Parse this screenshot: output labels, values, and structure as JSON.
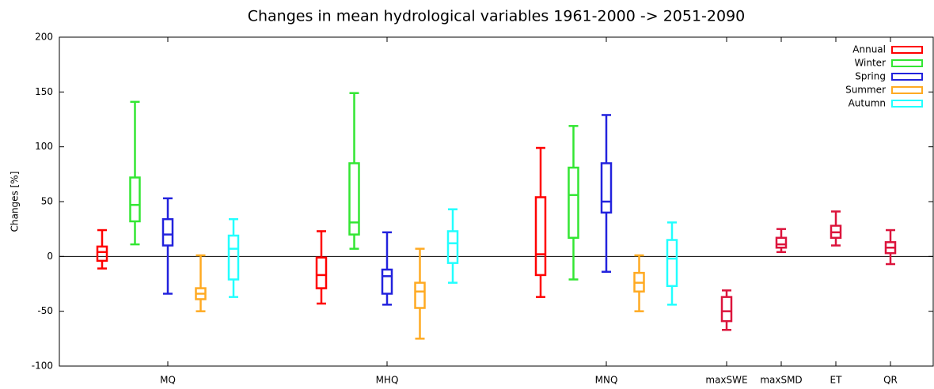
{
  "chart_data": {
    "type": "box",
    "title": "Changes in mean hydrological variables 1961-2000 -> 2051-2090",
    "y_label": "Changes [%]",
    "categories": [
      "MQ",
      "MHQ",
      "MNQ",
      "maxSWE",
      "maxSMD",
      "ET",
      "QR"
    ],
    "ylim": [
      -100,
      200
    ],
    "yticks": [
      -100,
      -50,
      0,
      50,
      100,
      150,
      200
    ],
    "zero_line": true,
    "legend": "upper right",
    "series": [
      {
        "name": "Annual",
        "color": "#ff0000",
        "values": [
          {
            "min": -11,
            "q1": -4,
            "median": 4,
            "q3": 9,
            "max": 24
          },
          {
            "min": -43,
            "q1": -29,
            "median": -17,
            "q3": -1,
            "max": 23
          },
          {
            "min": -37,
            "q1": -17,
            "median": 2,
            "q3": 54,
            "max": 99
          },
          null,
          null,
          null,
          null
        ]
      },
      {
        "name": "Winter",
        "color": "#33e633",
        "values": [
          {
            "min": 11,
            "q1": 32,
            "median": 47,
            "q3": 72,
            "max": 141
          },
          {
            "min": 7,
            "q1": 20,
            "median": 31,
            "q3": 85,
            "max": 149
          },
          {
            "min": -21,
            "q1": 17,
            "median": 56,
            "q3": 81,
            "max": 119
          },
          null,
          null,
          null,
          null
        ]
      },
      {
        "name": "Spring",
        "color": "#2222dd",
        "values": [
          {
            "min": -34,
            "q1": 10,
            "median": 20,
            "q3": 34,
            "max": 53
          },
          {
            "min": -44,
            "q1": -34,
            "median": -18,
            "q3": -12,
            "max": 22
          },
          {
            "min": -14,
            "q1": 40,
            "median": 50,
            "q3": 85,
            "max": 129
          },
          null,
          null,
          null,
          null
        ]
      },
      {
        "name": "Summer",
        "color": "#ffaa22",
        "values": [
          {
            "min": -50,
            "q1": -39,
            "median": -34,
            "q3": -29,
            "max": 1
          },
          {
            "min": -75,
            "q1": -47,
            "median": -32,
            "q3": -24,
            "max": 7
          },
          {
            "min": -50,
            "q1": -32,
            "median": -24,
            "q3": -15,
            "max": 1
          },
          null,
          null,
          null,
          null
        ]
      },
      {
        "name": "Autumn",
        "color": "#22ffff",
        "values": [
          {
            "min": -37,
            "q1": -21,
            "median": 7,
            "q3": 19,
            "max": 34
          },
          {
            "min": -24,
            "q1": -6,
            "median": 12,
            "q3": 23,
            "max": 43
          },
          {
            "min": -44,
            "q1": -27,
            "median": -2,
            "q3": 15,
            "max": 31
          },
          null,
          null,
          null,
          null
        ]
      },
      {
        "color": "#dc143c",
        "values": [
          null,
          null,
          null,
          {
            "min": -67,
            "q1": -59,
            "median": -50,
            "q3": -37,
            "max": -31
          },
          {
            "min": 4,
            "q1": 8,
            "median": 11,
            "q3": 17,
            "max": 25
          },
          {
            "min": 10,
            "q1": 17,
            "median": 22,
            "q3": 28,
            "max": 41
          },
          {
            "min": -7,
            "q1": 3,
            "median": 8,
            "q3": 13,
            "max": 24
          }
        ]
      }
    ]
  }
}
